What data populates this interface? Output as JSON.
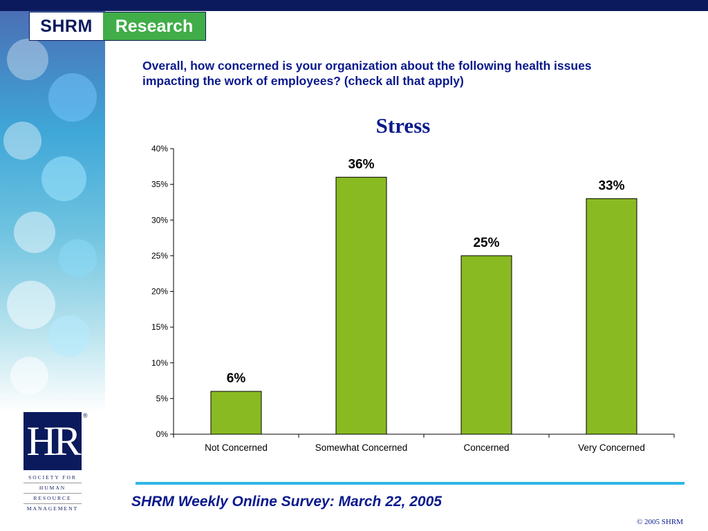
{
  "header": {
    "brand": "SHRM",
    "section": "Research"
  },
  "question": "Overall, how concerned is your organization about the following health issues impacting the work of employees? (check all that apply)",
  "chart_data": {
    "type": "bar",
    "title": "Stress",
    "categories": [
      "Not Concerned",
      "Somewhat Concerned",
      "Concerned",
      "Very Concerned"
    ],
    "values": [
      6,
      36,
      25,
      33
    ],
    "data_labels": [
      "6%",
      "36%",
      "25%",
      "33%"
    ],
    "ylim": [
      0,
      40
    ],
    "yticks": [
      0,
      5,
      10,
      15,
      20,
      25,
      30,
      35,
      40
    ],
    "ytick_labels": [
      "0%",
      "5%",
      "10%",
      "15%",
      "20%",
      "25%",
      "30%",
      "35%",
      "40%"
    ],
    "xlabel": "",
    "ylabel": "",
    "grid": false,
    "bar_color": "#8aba21"
  },
  "footer": {
    "title": "SHRM Weekly Online Survey: March 22, 2005",
    "copyright": "© 2005 SHRM"
  },
  "hr_logo": {
    "letters": "HR",
    "registered": "®",
    "lines": [
      "SOCIETY FOR",
      "HUMAN",
      "RESOURCE",
      "MANAGEMENT"
    ]
  }
}
